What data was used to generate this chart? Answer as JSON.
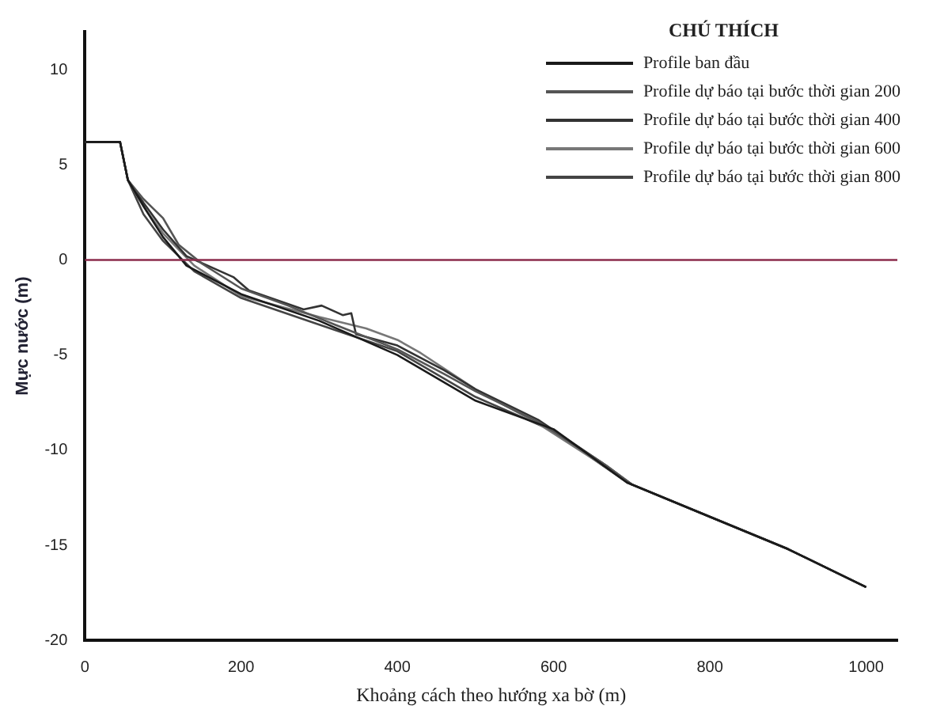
{
  "chart_data": {
    "type": "line",
    "xlabel": "Khoảng cách theo hướng xa bờ (m)",
    "ylabel": "Mực nước (m)",
    "legend_title": "CHÚ THÍCH",
    "legend": "top right",
    "marker": "none",
    "line_style": "solid",
    "grid": false,
    "xlim": [
      0,
      1040
    ],
    "xticks": [
      0,
      200,
      400,
      600,
      800,
      1000
    ],
    "ylim": [
      -20,
      12
    ],
    "yticks": [
      -20,
      -15,
      -10,
      -5,
      0,
      5,
      10
    ],
    "ref_lines": [
      {
        "axis": "y",
        "value": 0,
        "color": "#8b2b4b"
      }
    ],
    "series": [
      {
        "name": "Profile ban đầu",
        "color": "#1a1a1a",
        "x": [
          0,
          45,
          55,
          80,
          100,
          130,
          200,
          300,
          400,
          500,
          600,
          694,
          800,
          900,
          1000
        ],
        "values": [
          6.2,
          6.2,
          4.2,
          2.5,
          1.2,
          -0.3,
          -1.8,
          -3.2,
          -5.0,
          -7.4,
          -8.9,
          -11.7,
          -13.5,
          -15.2,
          -17.2
        ]
      },
      {
        "name": "Profile dự báo tại bước thời gian 200",
        "color": "#555555",
        "x": [
          0,
          45,
          55,
          75,
          100,
          120,
          150,
          200,
          260,
          320,
          400,
          460,
          500,
          580,
          667,
          700,
          800,
          900,
          1000
        ],
        "values": [
          6.2,
          6.2,
          4.2,
          3.2,
          2.2,
          0.8,
          -0.2,
          -1.5,
          -2.4,
          -3.4,
          -4.7,
          -6.0,
          -6.9,
          -8.5,
          -10.8,
          -11.8,
          -13.5,
          -15.2,
          -17.2
        ]
      },
      {
        "name": "Profile dự báo tại bước thời gian 400",
        "color": "#333333",
        "x": [
          0,
          45,
          55,
          75,
          100,
          130,
          190,
          210,
          280,
          303,
          330,
          341,
          347,
          400,
          460,
          500,
          580,
          667,
          700,
          800,
          900,
          1000
        ],
        "values": [
          6.2,
          6.2,
          4.2,
          3.0,
          1.6,
          0.2,
          -0.9,
          -1.6,
          -2.6,
          -2.4,
          -2.9,
          -2.8,
          -3.9,
          -4.5,
          -5.8,
          -6.8,
          -8.4,
          -10.8,
          -11.8,
          -13.5,
          -15.2,
          -17.2
        ]
      },
      {
        "name": "Profile dự báo tại bước thời gian 600",
        "color": "#777777",
        "x": [
          0,
          45,
          55,
          75,
          100,
          140,
          200,
          300,
          360,
          400,
          430,
          500,
          580,
          667,
          700,
          800,
          900,
          1000
        ],
        "values": [
          6.2,
          6.2,
          4.2,
          2.8,
          1.4,
          -0.3,
          -1.9,
          -3.0,
          -3.6,
          -4.2,
          -4.9,
          -6.8,
          -8.6,
          -10.9,
          -11.8,
          -13.5,
          -15.2,
          -17.2
        ]
      },
      {
        "name": "Profile dự báo tại bước thời gian 800",
        "color": "#444444",
        "x": [
          0,
          45,
          55,
          75,
          100,
          140,
          200,
          300,
          400,
          500,
          600,
          694,
          800,
          900,
          1000
        ],
        "values": [
          6.2,
          6.2,
          4.2,
          2.4,
          1.0,
          -0.6,
          -2.0,
          -3.4,
          -4.8,
          -7.2,
          -9.0,
          -11.7,
          -13.5,
          -15.2,
          -17.2
        ]
      }
    ]
  }
}
